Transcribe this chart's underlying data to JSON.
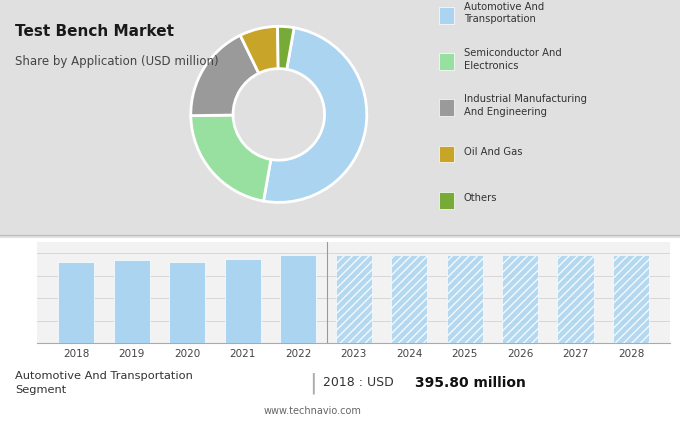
{
  "title": "Test Bench Market",
  "subtitle": "Share by Application (USD million)",
  "top_bg_color": "#e0e0e0",
  "bottom_bg_color": "#ffffff",
  "pie_colors": [
    "#aad4f0",
    "#98e0a0",
    "#9a9a9a",
    "#c8a428",
    "#78aa38"
  ],
  "pie_sizes": [
    50,
    22,
    18,
    7,
    3
  ],
  "pie_startangle": 80,
  "legend_labels": [
    "Automotive And\nTransportation",
    "Semiconductor And\nElectronics",
    "Industrial Manufacturing\nAnd Engineering",
    "Oil And Gas",
    "Others"
  ],
  "bar_years_solid": [
    2018,
    2019,
    2020,
    2021,
    2022
  ],
  "bar_values_solid": [
    72,
    74,
    72,
    75,
    78
  ],
  "bar_years_hatched": [
    2023,
    2024,
    2025,
    2026,
    2027,
    2028
  ],
  "bar_values_hatched": [
    78,
    78,
    78,
    78,
    78,
    78
  ],
  "bar_color_solid": "#aad4f0",
  "bar_color_hatched": "#aad4f0",
  "footer_left": "Automotive And Transportation\nSegment",
  "footer_right_prefix": "2018 : USD ",
  "footer_right_value": "395.80 million",
  "footer_url": "www.technavio.com"
}
